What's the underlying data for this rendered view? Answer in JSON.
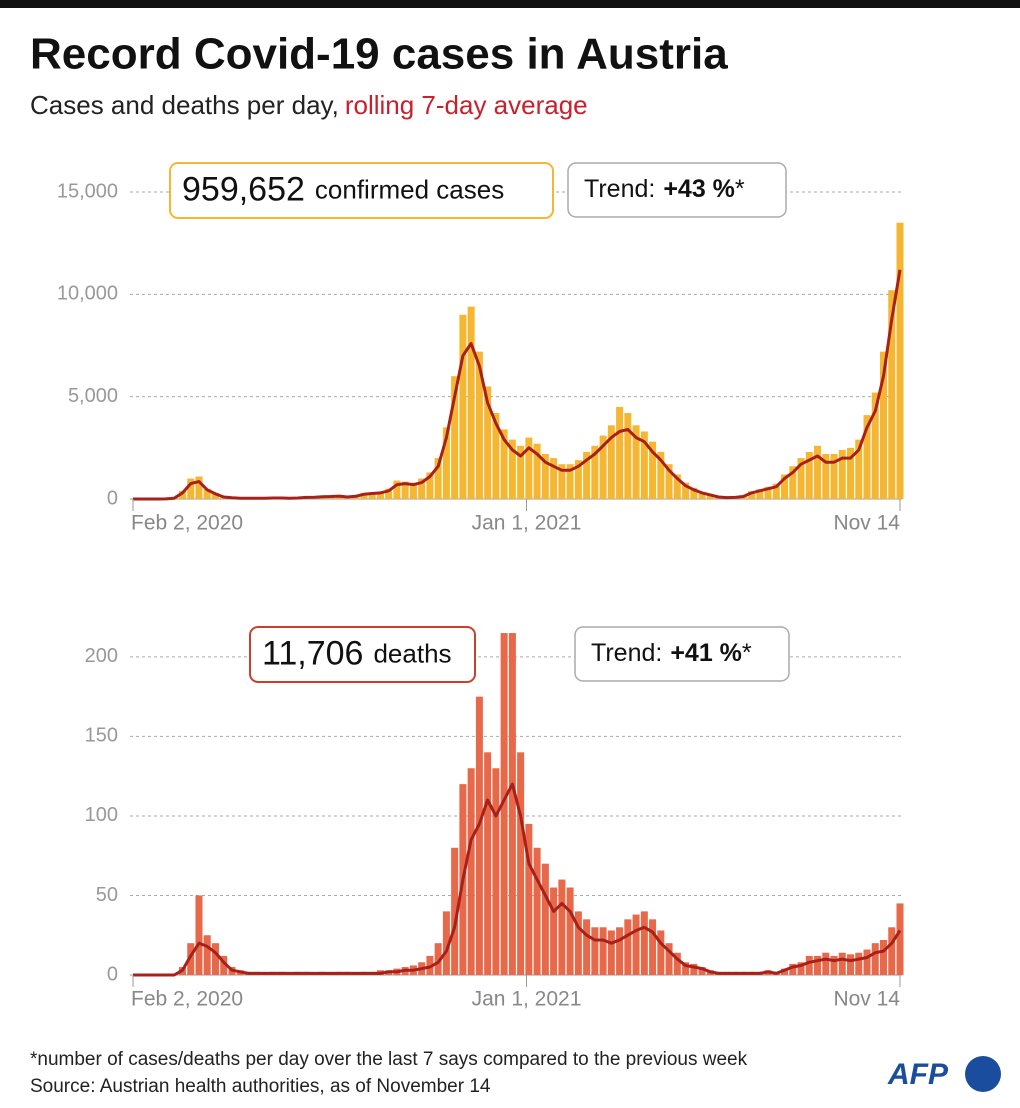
{
  "header": {
    "title": "Record Covid-19 cases in Austria",
    "subtitle": "Cases and deaths per day,",
    "subtitle_highlight": "rolling 7-day average"
  },
  "footer": {
    "note": "*number of cases/deaths per day over the last 7 says compared to the previous week",
    "source": "Source: Austrian health authorities, as of November 14",
    "logo": "AFP"
  },
  "chart_data": [
    {
      "type": "bar",
      "total": "959,652",
      "total_label": "confirmed cases",
      "trend_label": "Trend:",
      "trend_value": "+43 %",
      "trend_mark": "*",
      "x": [
        "2020-02-02",
        "2020-02-09",
        "2020-02-16",
        "2020-02-23",
        "2020-03-01",
        "2020-03-08",
        "2020-03-15",
        "2020-03-22",
        "2020-03-29",
        "2020-04-05",
        "2020-04-12",
        "2020-04-19",
        "2020-04-26",
        "2020-05-03",
        "2020-05-10",
        "2020-05-17",
        "2020-05-24",
        "2020-05-31",
        "2020-06-07",
        "2020-06-14",
        "2020-06-21",
        "2020-06-28",
        "2020-07-05",
        "2020-07-12",
        "2020-07-19",
        "2020-07-26",
        "2020-08-02",
        "2020-08-09",
        "2020-08-16",
        "2020-08-23",
        "2020-08-30",
        "2020-09-06",
        "2020-09-13",
        "2020-09-20",
        "2020-09-27",
        "2020-10-04",
        "2020-10-11",
        "2020-10-18",
        "2020-10-25",
        "2020-11-01",
        "2020-11-08",
        "2020-11-15",
        "2020-11-22",
        "2020-11-29",
        "2020-12-06",
        "2020-12-13",
        "2020-12-20",
        "2020-12-27",
        "2021-01-03",
        "2021-01-10",
        "2021-01-17",
        "2021-01-24",
        "2021-01-31",
        "2021-02-07",
        "2021-02-14",
        "2021-02-21",
        "2021-02-28",
        "2021-03-07",
        "2021-03-14",
        "2021-03-21",
        "2021-03-28",
        "2021-04-04",
        "2021-04-11",
        "2021-04-18",
        "2021-04-25",
        "2021-05-02",
        "2021-05-09",
        "2021-05-16",
        "2021-05-23",
        "2021-05-30",
        "2021-06-06",
        "2021-06-13",
        "2021-06-20",
        "2021-06-27",
        "2021-07-04",
        "2021-07-11",
        "2021-07-18",
        "2021-07-25",
        "2021-08-01",
        "2021-08-08",
        "2021-08-15",
        "2021-08-22",
        "2021-08-29",
        "2021-09-05",
        "2021-09-12",
        "2021-09-19",
        "2021-09-26",
        "2021-10-03",
        "2021-10-10",
        "2021-10-17",
        "2021-10-24",
        "2021-10-31",
        "2021-11-07",
        "2021-11-14"
      ],
      "values": [
        0,
        0,
        0,
        0,
        10,
        60,
        400,
        1000,
        1100,
        500,
        300,
        120,
        70,
        50,
        40,
        50,
        40,
        60,
        60,
        50,
        60,
        100,
        100,
        130,
        140,
        160,
        120,
        150,
        300,
        320,
        350,
        500,
        900,
        850,
        800,
        1000,
        1300,
        2000,
        3500,
        6000,
        9000,
        9400,
        7200,
        5500,
        4200,
        3400,
        2900,
        2600,
        3000,
        2700,
        2200,
        2000,
        1700,
        1700,
        1900,
        2300,
        2600,
        3100,
        3600,
        4500,
        4200,
        3600,
        3300,
        2800,
        2300,
        1700,
        1200,
        800,
        550,
        350,
        230,
        130,
        90,
        100,
        150,
        380,
        480,
        600,
        750,
        1200,
        1600,
        2000,
        2300,
        2600,
        2200,
        2200,
        2400,
        2500,
        2900,
        4100,
        5200,
        7200,
        10200,
        13500
      ],
      "color": "#f5b731",
      "line": {
        "values": [
          0,
          0,
          0,
          0,
          5,
          40,
          300,
          750,
          850,
          450,
          250,
          100,
          60,
          40,
          40,
          40,
          40,
          50,
          50,
          40,
          50,
          80,
          90,
          110,
          120,
          140,
          100,
          130,
          230,
          270,
          300,
          400,
          700,
          750,
          700,
          800,
          1100,
          1600,
          3000,
          5000,
          7000,
          7600,
          6500,
          4700,
          3700,
          2900,
          2400,
          2100,
          2500,
          2200,
          1800,
          1600,
          1400,
          1400,
          1600,
          1900,
          2200,
          2600,
          3000,
          3300,
          3400,
          3000,
          2800,
          2300,
          1900,
          1400,
          1000,
          650,
          450,
          300,
          200,
          100,
          70,
          80,
          120,
          300,
          400,
          500,
          600,
          1000,
          1300,
          1700,
          1900,
          2100,
          1800,
          1800,
          2000,
          2000,
          2400,
          3500,
          4300,
          6000,
          8800,
          11200
        ],
        "color": "#a8201a"
      },
      "box_color": "#f5b731",
      "xlim": [
        "2020-02-02",
        "2021-11-14"
      ],
      "xticks": [
        {
          "value": "2020-02-02",
          "label": "Feb 2, 2020"
        },
        {
          "value": "2021-01-01",
          "label": "Jan 1, 2021"
        },
        {
          "value": "2021-11-14",
          "label": "Nov 14"
        }
      ],
      "ylim": [
        0,
        15000
      ],
      "yticks": [
        0,
        {
          "value": 5000,
          "label": "5,000"
        },
        {
          "value": 10000,
          "label": "10,000"
        },
        {
          "value": 15000,
          "label": "15,000"
        }
      ],
      "grid": true
    },
    {
      "type": "bar",
      "total": "11,706",
      "total_label": "deaths",
      "trend_label": "Trend:",
      "trend_value": "+41 %",
      "trend_mark": "*",
      "x": [
        "2020-02-02",
        "2020-02-09",
        "2020-02-16",
        "2020-02-23",
        "2020-03-01",
        "2020-03-08",
        "2020-03-15",
        "2020-03-22",
        "2020-03-29",
        "2020-04-05",
        "2020-04-12",
        "2020-04-19",
        "2020-04-26",
        "2020-05-03",
        "2020-05-10",
        "2020-05-17",
        "2020-05-24",
        "2020-05-31",
        "2020-06-07",
        "2020-06-14",
        "2020-06-21",
        "2020-06-28",
        "2020-07-05",
        "2020-07-12",
        "2020-07-19",
        "2020-07-26",
        "2020-08-02",
        "2020-08-09",
        "2020-08-16",
        "2020-08-23",
        "2020-08-30",
        "2020-09-06",
        "2020-09-13",
        "2020-09-20",
        "2020-09-27",
        "2020-10-04",
        "2020-10-11",
        "2020-10-18",
        "2020-10-25",
        "2020-11-01",
        "2020-11-08",
        "2020-11-15",
        "2020-11-22",
        "2020-11-29",
        "2020-12-06",
        "2020-12-13",
        "2020-12-20",
        "2020-12-27",
        "2021-01-03",
        "2021-01-10",
        "2021-01-17",
        "2021-01-24",
        "2021-01-31",
        "2021-02-07",
        "2021-02-14",
        "2021-02-21",
        "2021-02-28",
        "2021-03-07",
        "2021-03-14",
        "2021-03-21",
        "2021-03-28",
        "2021-04-04",
        "2021-04-11",
        "2021-04-18",
        "2021-04-25",
        "2021-05-02",
        "2021-05-09",
        "2021-05-16",
        "2021-05-23",
        "2021-05-30",
        "2021-06-06",
        "2021-06-13",
        "2021-06-20",
        "2021-06-27",
        "2021-07-04",
        "2021-07-11",
        "2021-07-18",
        "2021-07-25",
        "2021-08-01",
        "2021-08-08",
        "2021-08-15",
        "2021-08-22",
        "2021-08-29",
        "2021-09-05",
        "2021-09-12",
        "2021-09-19",
        "2021-09-26",
        "2021-10-03",
        "2021-10-10",
        "2021-10-17",
        "2021-10-24",
        "2021-10-31",
        "2021-11-07",
        "2021-11-14"
      ],
      "values": [
        0,
        0,
        0,
        0,
        0,
        0,
        5,
        20,
        50,
        25,
        20,
        12,
        5,
        3,
        2,
        2,
        1,
        2,
        2,
        1,
        2,
        2,
        1,
        2,
        1,
        2,
        2,
        1,
        2,
        2,
        3,
        3,
        4,
        5,
        6,
        8,
        12,
        20,
        40,
        80,
        120,
        130,
        175,
        140,
        130,
        215,
        215,
        140,
        95,
        80,
        70,
        55,
        60,
        55,
        40,
        35,
        30,
        30,
        28,
        30,
        35,
        38,
        40,
        35,
        28,
        20,
        14,
        8,
        7,
        5,
        3,
        2,
        2,
        2,
        2,
        2,
        2,
        3,
        2,
        4,
        7,
        8,
        12,
        12,
        14,
        12,
        14,
        13,
        14,
        16,
        20,
        22,
        30,
        45
      ],
      "color": "#e8684a",
      "line": {
        "values": [
          0,
          0,
          0,
          0,
          0,
          0,
          3,
          12,
          20,
          18,
          14,
          8,
          3,
          2,
          1,
          1,
          1,
          1,
          1,
          1,
          1,
          1,
          1,
          1,
          1,
          1,
          1,
          1,
          1,
          1,
          1,
          2,
          2,
          3,
          3,
          4,
          5,
          8,
          15,
          30,
          60,
          85,
          95,
          110,
          100,
          110,
          120,
          100,
          70,
          60,
          50,
          40,
          45,
          40,
          30,
          25,
          22,
          22,
          20,
          22,
          25,
          28,
          30,
          27,
          20,
          15,
          10,
          6,
          5,
          4,
          2,
          1,
          1,
          1,
          1,
          1,
          1,
          2,
          1,
          3,
          5,
          6,
          8,
          9,
          10,
          9,
          10,
          9,
          10,
          11,
          14,
          15,
          20,
          28
        ],
        "color": "#a8201a"
      },
      "box_color": "#c9412c",
      "xlim": [
        "2020-02-02",
        "2021-11-14"
      ],
      "xticks": [
        {
          "value": "2020-02-02",
          "label": "Feb 2, 2020"
        },
        {
          "value": "2021-01-01",
          "label": "Jan 1, 2021"
        },
        {
          "value": "2021-11-14",
          "label": "Nov 14"
        }
      ],
      "ylim": [
        0,
        210
      ],
      "yticks": [
        0,
        50,
        100,
        150,
        200
      ],
      "grid": true
    }
  ]
}
